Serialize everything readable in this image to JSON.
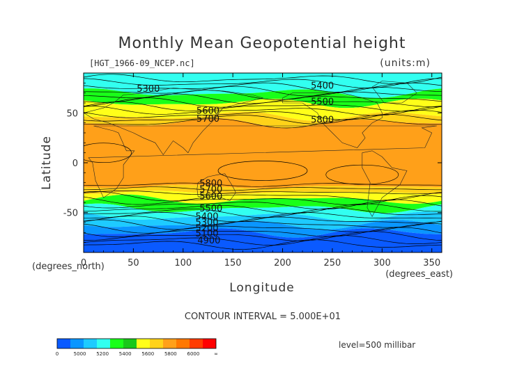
{
  "chart_data": {
    "type": "heatmap",
    "title": "Monthly Mean Geopotential height",
    "file_label": "[HGT_1966-09_NCEP.nc]",
    "units_label": "(units:m)",
    "xlabel": "Longitude",
    "ylabel": "Latitude",
    "x_unit_label": "(degrees_east)",
    "y_unit_label": "(degrees_north)",
    "xlim": [
      0,
      360
    ],
    "ylim": [
      -90,
      90
    ],
    "x_ticks": [
      0,
      50,
      100,
      150,
      200,
      250,
      300,
      350
    ],
    "y_ticks": [
      -50,
      0,
      50
    ],
    "contour_interval_text": "CONTOUR INTERVAL = 5.000E+01",
    "level_text": "level=500 millibar",
    "colorbar": {
      "labels": [
        "0",
        "5000",
        "5200",
        "5400",
        "5600",
        "5800",
        "6000",
        "∞"
      ],
      "colors": [
        "#0a5aff",
        "#0a96ff",
        "#1ecbff",
        "#32fff0",
        "#19ff19",
        "#19c819",
        "#ffff19",
        "#ffd219",
        "#ffa019",
        "#ff7800",
        "#ff3c00",
        "#ff0000"
      ]
    },
    "bands": [
      {
        "lat_from": 90,
        "lat_to": 70,
        "color": "#32fff0"
      },
      {
        "lat_from": 70,
        "lat_to": 60,
        "color": "#19ff19"
      },
      {
        "lat_from": 60,
        "lat_to": 47,
        "color": "#ffff19"
      },
      {
        "lat_from": 47,
        "lat_to": 40,
        "color": "#ffd219"
      },
      {
        "lat_from": 40,
        "lat_to": -24,
        "color": "#ffa019"
      },
      {
        "lat_from": -24,
        "lat_to": -30,
        "color": "#ffd219"
      },
      {
        "lat_from": -30,
        "lat_to": -37,
        "color": "#ffff19"
      },
      {
        "lat_from": -37,
        "lat_to": -46,
        "color": "#19ff19"
      },
      {
        "lat_from": -46,
        "lat_to": -54,
        "color": "#32fff0"
      },
      {
        "lat_from": -54,
        "lat_to": -62,
        "color": "#1ecbff"
      },
      {
        "lat_from": -62,
        "lat_to": -70,
        "color": "#0a96ff"
      },
      {
        "lat_from": -70,
        "lat_to": -90,
        "color": "#0a5aff"
      }
    ],
    "contour_labels": [
      {
        "text": "5300",
        "lon": 65,
        "lat": 74
      },
      {
        "text": "5400",
        "lon": 240,
        "lat": 77
      },
      {
        "text": "5500",
        "lon": 240,
        "lat": 61
      },
      {
        "text": "5600",
        "lon": 125,
        "lat": 52
      },
      {
        "text": "5700",
        "lon": 125,
        "lat": 44
      },
      {
        "text": "5800",
        "lon": 240,
        "lat": 43
      },
      {
        "text": "5800",
        "lon": 128,
        "lat": -21
      },
      {
        "text": "5700",
        "lon": 128,
        "lat": -27
      },
      {
        "text": "5600",
        "lon": 128,
        "lat": -34
      },
      {
        "text": "5500",
        "lon": 128,
        "lat": -46
      },
      {
        "text": "5400",
        "lon": 124,
        "lat": -54
      },
      {
        "text": "5300",
        "lon": 124,
        "lat": -60
      },
      {
        "text": "5200",
        "lon": 124,
        "lat": -66
      },
      {
        "text": "5100",
        "lon": 124,
        "lat": -71
      },
      {
        "text": "4900",
        "lon": 126,
        "lat": -78
      }
    ]
  }
}
